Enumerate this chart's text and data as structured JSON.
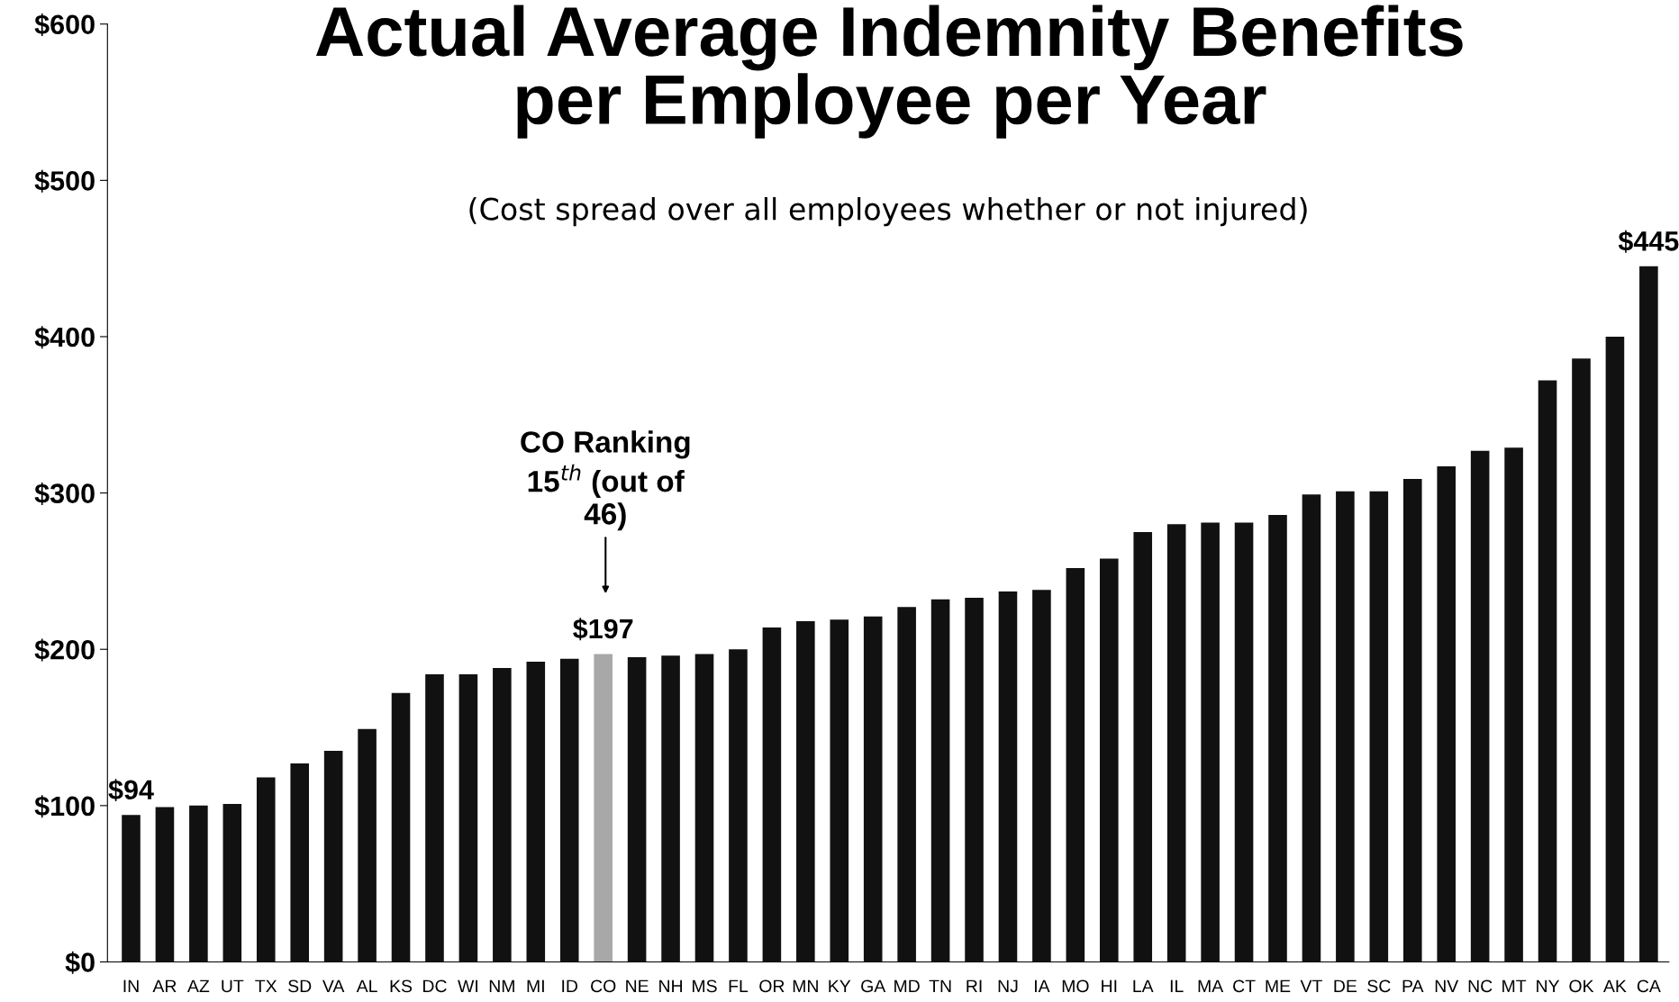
{
  "chart_data": {
    "type": "bar",
    "title": "Actual Average Indemnity Benefits\nper Employee per Year",
    "subtitle": "(Cost spread over all employees whether or not injured)",
    "categories": [
      "IN",
      "AR",
      "AZ",
      "UT",
      "TX",
      "SD",
      "VA",
      "AL",
      "KS",
      "DC",
      "WI",
      "NM",
      "MI",
      "ID",
      "CO",
      "NE",
      "NH",
      "MS",
      "FL",
      "OR",
      "MN",
      "KY",
      "GA",
      "MD",
      "TN",
      "RI",
      "NJ",
      "IA",
      "MO",
      "HI",
      "LA",
      "IL",
      "MA",
      "CT",
      "ME",
      "VT",
      "DE",
      "SC",
      "PA",
      "NV",
      "NC",
      "MT",
      "NY",
      "OK",
      "AK",
      "CA"
    ],
    "values": [
      94,
      99,
      100,
      101,
      118,
      127,
      135,
      149,
      172,
      184,
      184,
      188,
      192,
      194,
      197,
      195,
      196,
      197,
      200,
      214,
      218,
      219,
      221,
      227,
      232,
      233,
      237,
      238,
      252,
      258,
      275,
      280,
      281,
      281,
      286,
      299,
      301,
      301,
      309,
      317,
      327,
      329,
      372,
      386,
      400,
      445
    ],
    "colors": [
      "#111111",
      "#111111",
      "#111111",
      "#111111",
      "#111111",
      "#111111",
      "#111111",
      "#111111",
      "#111111",
      "#111111",
      "#111111",
      "#111111",
      "#111111",
      "#111111",
      "#a8a8a8",
      "#111111",
      "#111111",
      "#111111",
      "#111111",
      "#111111",
      "#111111",
      "#111111",
      "#111111",
      "#111111",
      "#111111",
      "#111111",
      "#111111",
      "#111111",
      "#111111",
      "#111111",
      "#111111",
      "#111111",
      "#111111",
      "#111111",
      "#111111",
      "#111111",
      "#111111",
      "#111111",
      "#111111",
      "#111111",
      "#111111",
      "#111111",
      "#111111",
      "#111111",
      "#111111",
      "#111111"
    ],
    "value_labels": [
      "$94",
      null,
      null,
      null,
      null,
      null,
      null,
      null,
      null,
      null,
      null,
      null,
      null,
      null,
      "$197",
      null,
      null,
      null,
      null,
      null,
      null,
      null,
      null,
      null,
      null,
      null,
      null,
      null,
      null,
      null,
      null,
      null,
      null,
      null,
      null,
      null,
      null,
      null,
      null,
      null,
      null,
      null,
      null,
      null,
      null,
      "$445"
    ],
    "ylim": [
      0,
      600
    ],
    "yticks": [
      {
        "value": 0,
        "label": "$0"
      },
      {
        "value": 100,
        "label": "$100"
      },
      {
        "value": 200,
        "label": "$200"
      },
      {
        "value": 300,
        "label": "$300"
      },
      {
        "value": 400,
        "label": "$400"
      },
      {
        "value": 500,
        "label": "$500"
      },
      {
        "value": 600,
        "label": "$600"
      }
    ],
    "grid": false,
    "annotations": [
      "CO Ranking\n15$^{th}$ (out of\n46)"
    ]
  }
}
